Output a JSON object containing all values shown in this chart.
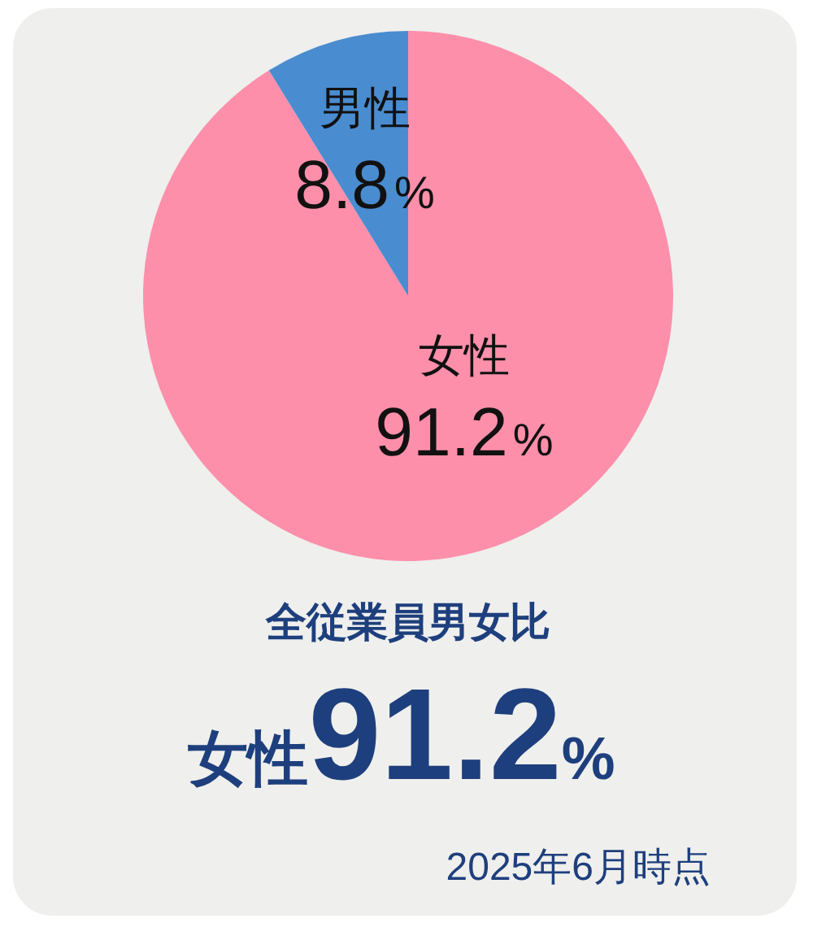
{
  "chart_data": {
    "type": "pie",
    "title": "全従業員男女比",
    "categories": [
      "女性",
      "男性"
    ],
    "values": [
      91.2,
      8.8
    ],
    "colors": [
      "#fd8fab",
      "#4a8cd0"
    ],
    "value_labels": [
      "91.2%",
      "8.8%"
    ],
    "annotations": [
      "女性91.2%",
      "2025年6月時点"
    ]
  }
}
